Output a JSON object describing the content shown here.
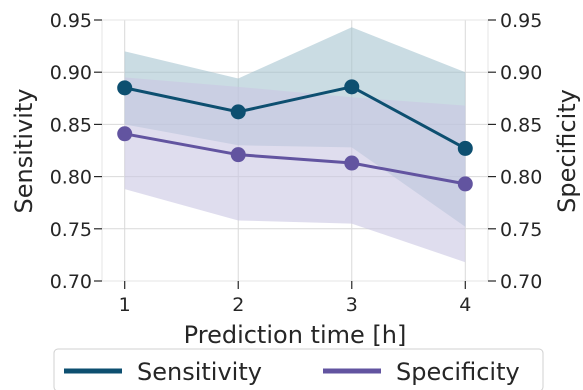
{
  "chart_data": {
    "type": "line",
    "title": "",
    "xlabel": "Prediction time [h]",
    "ylabel": "Sensitivity",
    "ylabel_right": "Specificity",
    "x": [
      1,
      2,
      3,
      4
    ],
    "xticks": [
      "1",
      "2",
      "3",
      "4"
    ],
    "ylim": [
      0.7,
      0.95
    ],
    "yticks": [
      "0.70",
      "0.75",
      "0.80",
      "0.85",
      "0.90",
      "0.95"
    ],
    "grid": true,
    "legend_position": "bottom-center",
    "series": [
      {
        "name": "Sensitivity",
        "values": [
          0.885,
          0.862,
          0.886,
          0.827
        ],
        "lower": [
          0.85,
          0.83,
          0.828,
          0.752
        ],
        "upper": [
          0.92,
          0.894,
          0.943,
          0.9
        ],
        "color": "#0d4f70",
        "band_color": "#9ebfcc"
      },
      {
        "name": "Specificity",
        "values": [
          0.841,
          0.821,
          0.813,
          0.793
        ],
        "lower": [
          0.788,
          0.758,
          0.755,
          0.718
        ],
        "upper": [
          0.895,
          0.886,
          0.876,
          0.868
        ],
        "color": "#6254a0",
        "band_color": "#c9c6e3"
      }
    ]
  }
}
